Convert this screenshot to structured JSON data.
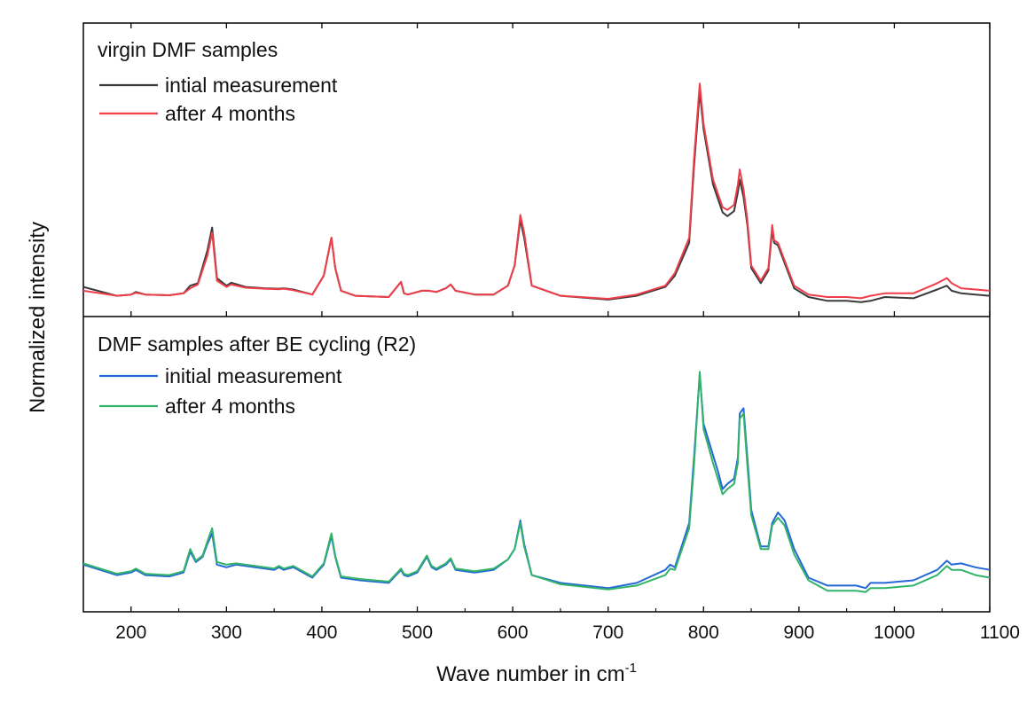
{
  "chart_data": {
    "type": "line",
    "xlabel": "Wave number in cm",
    "xlabel_superscript": "-1",
    "ylabel": "Normalized intensity",
    "xlim": [
      150,
      1100
    ],
    "xticks": [
      "200",
      "300",
      "400",
      "500",
      "600",
      "700",
      "800",
      "900",
      "1000",
      "1100"
    ],
    "grid": false,
    "panels": [
      {
        "legend_title": "virgin DMF samples",
        "legend_position": "top-left",
        "ylim": [
          0,
          1
        ],
        "series": [
          {
            "name": "intial measurement",
            "color": "#3a3a3a",
            "x": [
              150,
              185,
              200,
              205,
              215,
              240,
              255,
              262,
              270,
              280,
              285,
              290,
              300,
              305,
              320,
              340,
              355,
              360,
              370,
              390,
              402,
              410,
              414,
              420,
              435,
              470,
              483,
              486,
              490,
              505,
              512,
              520,
              530,
              535,
              540,
              560,
              580,
              595,
              602,
              608,
              612,
              620,
              650,
              700,
              730,
              760,
              770,
              785,
              790,
              796,
              800,
              810,
              820,
              825,
              832,
              836,
              838,
              842,
              846,
              850,
              860,
              868,
              872,
              874,
              878,
              885,
              895,
              910,
              930,
              950,
              965,
              975,
              990,
              1020,
              1045,
              1055,
              1060,
              1070,
              1085,
              1100
            ],
            "y": [
              0.075,
              0.04,
              0.045,
              0.055,
              0.045,
              0.042,
              0.05,
              0.08,
              0.09,
              0.22,
              0.31,
              0.11,
              0.08,
              0.092,
              0.075,
              0.07,
              0.068,
              0.07,
              0.065,
              0.045,
              0.12,
              0.27,
              0.15,
              0.06,
              0.04,
              0.035,
              0.095,
              0.05,
              0.045,
              0.06,
              0.06,
              0.055,
              0.07,
              0.085,
              0.06,
              0.045,
              0.045,
              0.08,
              0.16,
              0.34,
              0.27,
              0.08,
              0.04,
              0.025,
              0.04,
              0.075,
              0.12,
              0.25,
              0.55,
              0.85,
              0.7,
              0.48,
              0.37,
              0.355,
              0.375,
              0.45,
              0.5,
              0.43,
              0.32,
              0.15,
              0.09,
              0.14,
              0.3,
              0.25,
              0.24,
              0.17,
              0.07,
              0.035,
              0.02,
              0.02,
              0.015,
              0.02,
              0.035,
              0.03,
              0.065,
              0.08,
              0.06,
              0.05,
              0.045,
              0.04
            ]
          },
          {
            "name": "after 4 months",
            "color": "#ef3e4a",
            "x": [
              150,
              185,
              200,
              205,
              215,
              240,
              255,
              262,
              270,
              280,
              285,
              290,
              300,
              305,
              320,
              340,
              355,
              360,
              370,
              390,
              402,
              410,
              414,
              420,
              435,
              470,
              483,
              486,
              490,
              505,
              512,
              520,
              530,
              535,
              540,
              560,
              580,
              595,
              602,
              608,
              612,
              620,
              650,
              700,
              730,
              760,
              770,
              785,
              790,
              796,
              800,
              810,
              820,
              825,
              832,
              836,
              838,
              842,
              846,
              850,
              860,
              868,
              872,
              874,
              878,
              885,
              895,
              910,
              930,
              950,
              965,
              975,
              990,
              1020,
              1045,
              1055,
              1060,
              1070,
              1085,
              1100
            ],
            "y": [
              0.06,
              0.04,
              0.045,
              0.052,
              0.045,
              0.042,
              0.05,
              0.07,
              0.085,
              0.2,
              0.29,
              0.1,
              0.075,
              0.085,
              0.072,
              0.068,
              0.066,
              0.068,
              0.062,
              0.045,
              0.12,
              0.27,
              0.15,
              0.06,
              0.04,
              0.035,
              0.095,
              0.05,
              0.045,
              0.06,
              0.06,
              0.055,
              0.07,
              0.085,
              0.06,
              0.045,
              0.045,
              0.08,
              0.16,
              0.36,
              0.29,
              0.08,
              0.04,
              0.028,
              0.045,
              0.08,
              0.13,
              0.27,
              0.58,
              0.88,
              0.72,
              0.5,
              0.39,
              0.38,
              0.4,
              0.48,
              0.54,
              0.46,
              0.34,
              0.16,
              0.1,
              0.15,
              0.32,
              0.26,
              0.25,
              0.18,
              0.08,
              0.045,
              0.035,
              0.035,
              0.03,
              0.04,
              0.05,
              0.05,
              0.09,
              0.11,
              0.09,
              0.07,
              0.065,
              0.06
            ]
          }
        ]
      },
      {
        "legend_title": "DMF samples after BE cycling (R2)",
        "legend_position": "top-left",
        "ylim": [
          0,
          1
        ],
        "series": [
          {
            "name": "initial measurement",
            "color": "#2468d8",
            "x": [
              150,
              185,
              200,
              205,
              215,
              240,
              255,
              262,
              268,
              275,
              280,
              285,
              290,
              300,
              310,
              330,
              350,
              355,
              360,
              370,
              390,
              402,
              410,
              414,
              420,
              440,
              470,
              483,
              486,
              490,
              500,
              510,
              515,
              520,
              530,
              535,
              540,
              560,
              580,
              595,
              602,
              608,
              612,
              620,
              650,
              700,
              730,
              760,
              765,
              770,
              785,
              790,
              796,
              800,
              810,
              815,
              820,
              825,
              832,
              836,
              838,
              842,
              846,
              850,
              860,
              868,
              872,
              878,
              885,
              895,
              910,
              930,
              960,
              970,
              975,
              990,
              1020,
              1045,
              1055,
              1060,
              1070,
              1085,
              1100
            ],
            "y": [
              0.14,
              0.1,
              0.11,
              0.12,
              0.1,
              0.095,
              0.11,
              0.19,
              0.15,
              0.17,
              0.22,
              0.26,
              0.14,
              0.13,
              0.14,
              0.13,
              0.12,
              0.13,
              0.12,
              0.13,
              0.09,
              0.14,
              0.25,
              0.17,
              0.09,
              0.08,
              0.07,
              0.12,
              0.1,
              0.095,
              0.11,
              0.17,
              0.13,
              0.12,
              0.14,
              0.16,
              0.12,
              0.11,
              0.12,
              0.16,
              0.2,
              0.31,
              0.22,
              0.1,
              0.07,
              0.05,
              0.07,
              0.12,
              0.14,
              0.13,
              0.3,
              0.55,
              0.87,
              0.68,
              0.56,
              0.5,
              0.43,
              0.45,
              0.47,
              0.55,
              0.72,
              0.74,
              0.55,
              0.35,
              0.21,
              0.21,
              0.3,
              0.34,
              0.31,
              0.2,
              0.09,
              0.06,
              0.06,
              0.05,
              0.07,
              0.07,
              0.08,
              0.12,
              0.155,
              0.14,
              0.145,
              0.13,
              0.12
            ]
          },
          {
            "name": "after 4 months",
            "color": "#33b36a",
            "x": [
              150,
              185,
              200,
              205,
              215,
              240,
              255,
              262,
              268,
              275,
              280,
              285,
              290,
              300,
              310,
              330,
              350,
              355,
              360,
              370,
              390,
              402,
              410,
              414,
              420,
              440,
              470,
              483,
              486,
              490,
              500,
              510,
              515,
              520,
              530,
              535,
              540,
              560,
              580,
              595,
              602,
              608,
              612,
              620,
              650,
              700,
              730,
              760,
              765,
              770,
              785,
              790,
              796,
              800,
              810,
              815,
              820,
              825,
              832,
              836,
              838,
              842,
              846,
              850,
              860,
              868,
              872,
              878,
              885,
              895,
              910,
              930,
              960,
              970,
              975,
              990,
              1020,
              1045,
              1055,
              1060,
              1070,
              1085,
              1100
            ],
            "y": [
              0.145,
              0.105,
              0.115,
              0.125,
              0.105,
              0.1,
              0.115,
              0.2,
              0.155,
              0.175,
              0.23,
              0.28,
              0.15,
              0.14,
              0.145,
              0.135,
              0.125,
              0.135,
              0.125,
              0.135,
              0.095,
              0.145,
              0.26,
              0.175,
              0.095,
              0.085,
              0.075,
              0.125,
              0.105,
              0.1,
              0.115,
              0.175,
              0.135,
              0.125,
              0.145,
              0.165,
              0.125,
              0.115,
              0.125,
              0.16,
              0.2,
              0.3,
              0.21,
              0.1,
              0.065,
              0.045,
              0.06,
              0.1,
              0.125,
              0.12,
              0.28,
              0.52,
              0.88,
              0.66,
              0.53,
              0.47,
              0.41,
              0.43,
              0.45,
              0.53,
              0.7,
              0.72,
              0.52,
              0.33,
              0.2,
              0.2,
              0.29,
              0.32,
              0.29,
              0.18,
              0.08,
              0.04,
              0.04,
              0.035,
              0.05,
              0.05,
              0.06,
              0.1,
              0.135,
              0.12,
              0.12,
              0.1,
              0.09
            ]
          }
        ]
      }
    ]
  }
}
